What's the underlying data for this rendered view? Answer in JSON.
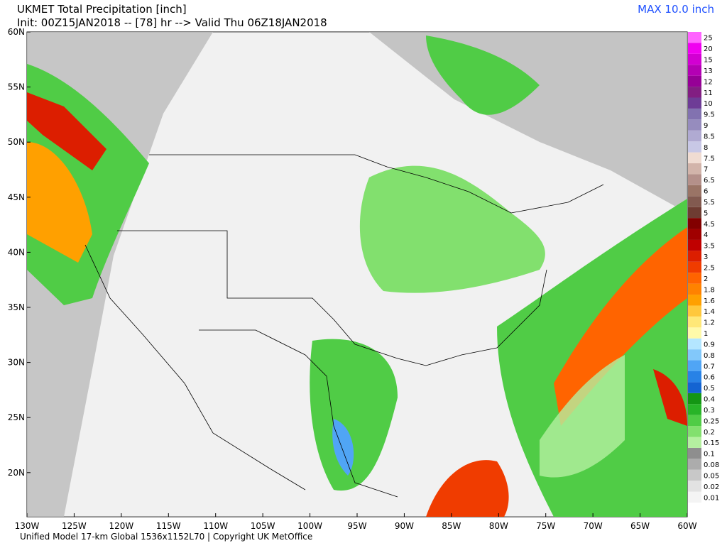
{
  "header": {
    "title": "UKMET Total Precipitation [inch]",
    "subtitle": "Init: 00Z15JAN2018 -- [78] hr --> Valid Thu 06Z18JAN2018",
    "max_label": "MAX 10.0 inch"
  },
  "map": {
    "lat_labels": [
      "60N",
      "55N",
      "50N",
      "45N",
      "40N",
      "35N",
      "30N",
      "25N",
      "20N"
    ],
    "lon_labels": [
      "130W",
      "125W",
      "120W",
      "115W",
      "110W",
      "105W",
      "100W",
      "95W",
      "90W",
      "85W",
      "80W",
      "75W",
      "70W",
      "65W",
      "60W"
    ]
  },
  "legend": {
    "items": [
      {
        "label": "0.01",
        "color": "#f4f4f4"
      },
      {
        "label": "0.02",
        "color": "#e2e2e2"
      },
      {
        "label": "0.05",
        "color": "#c8c8c8"
      },
      {
        "label": "0.08",
        "color": "#acacac"
      },
      {
        "label": "0.1",
        "color": "#8e8e8e"
      },
      {
        "label": "0.15",
        "color": "#b4f0a0"
      },
      {
        "label": "0.2",
        "color": "#82e06e"
      },
      {
        "label": "0.25",
        "color": "#50cc46"
      },
      {
        "label": "0.3",
        "color": "#28b428"
      },
      {
        "label": "0.4",
        "color": "#149614"
      },
      {
        "label": "0.5",
        "color": "#1464d2"
      },
      {
        "label": "0.6",
        "color": "#2882e6"
      },
      {
        "label": "0.7",
        "color": "#50a5f5"
      },
      {
        "label": "0.8",
        "color": "#82c8fa"
      },
      {
        "label": "0.9",
        "color": "#b4e6ff"
      },
      {
        "label": "1",
        "color": "#fffaaa"
      },
      {
        "label": "1.2",
        "color": "#ffe878"
      },
      {
        "label": "1.4",
        "color": "#ffc83c"
      },
      {
        "label": "1.6",
        "color": "#ffa000"
      },
      {
        "label": "1.8",
        "color": "#ff8200"
      },
      {
        "label": "2",
        "color": "#ff6400"
      },
      {
        "label": "2.5",
        "color": "#f03c00"
      },
      {
        "label": "3",
        "color": "#dc1e00"
      },
      {
        "label": "3.5",
        "color": "#c00000"
      },
      {
        "label": "4",
        "color": "#a00000"
      },
      {
        "label": "4.5",
        "color": "#820000"
      },
      {
        "label": "5",
        "color": "#6e3c32"
      },
      {
        "label": "5.5",
        "color": "#825a50"
      },
      {
        "label": "6",
        "color": "#9a7466"
      },
      {
        "label": "6.5",
        "color": "#b4908a"
      },
      {
        "label": "7",
        "color": "#d2b4aa"
      },
      {
        "label": "7.5",
        "color": "#f0dcd2"
      },
      {
        "label": "8",
        "color": "#c8c8e6"
      },
      {
        "label": "8.5",
        "color": "#b0aad2"
      },
      {
        "label": "9",
        "color": "#968cbe"
      },
      {
        "label": "9.5",
        "color": "#8272b0"
      },
      {
        "label": "10",
        "color": "#6e3c96"
      },
      {
        "label": "11",
        "color": "#821e82"
      },
      {
        "label": "12",
        "color": "#960096"
      },
      {
        "label": "13",
        "color": "#b400b4"
      },
      {
        "label": "15",
        "color": "#d200d2"
      },
      {
        "label": "20",
        "color": "#f000f0"
      },
      {
        "label": "25",
        "color": "#ff64ff"
      }
    ]
  },
  "footer": "Unified Model 17-km Global 1536x1152L70 | Copyright UK MetOffice"
}
